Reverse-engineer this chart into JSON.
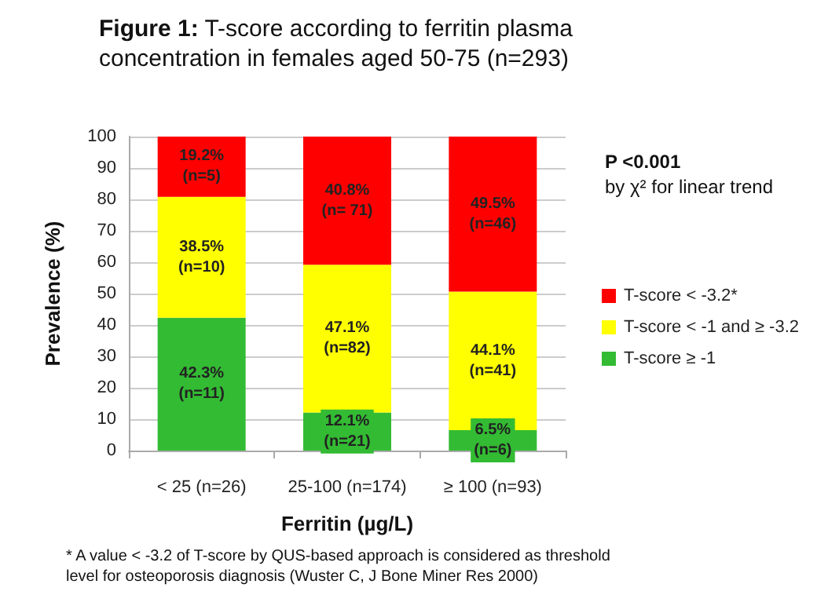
{
  "chart_data": {
    "type": "bar",
    "stacked": true,
    "title": "Figure 1: T-score according to ferritin plasma concentration in females aged 50-75 (n=293)",
    "xlabel": "Ferritin (µg/L)",
    "ylabel": "Prevalence (%)",
    "categories": [
      "< 25 (n=26)",
      "25-100 (n=174)",
      "≥ 100 (n=93)"
    ],
    "series": [
      {
        "name": "T-score ≥ -1",
        "color": "#33bb33",
        "values": [
          42.3,
          12.1,
          6.5
        ],
        "value_labels": [
          "42.3%\n(n=11)",
          "12.1%\n(n=21)",
          "6.5%\n(n=6)"
        ]
      },
      {
        "name": "T-score < -1 and ≥ -3.2",
        "color": "#ffff00",
        "values": [
          38.5,
          47.1,
          44.1
        ],
        "value_labels": [
          "38.5%\n(n=10)",
          "47.1%\n(n=82)",
          "44.1%\n(n=41)"
        ]
      },
      {
        "name": "T-score < -3.2*",
        "color": "#ff0000",
        "values": [
          19.2,
          40.8,
          49.5
        ],
        "value_labels": [
          "19.2%\n(n=5)",
          "40.8%\n(n= 71)",
          "49.5%\n(n=46)"
        ]
      }
    ],
    "ylim": [
      0,
      100
    ],
    "yticks": [
      0,
      10,
      20,
      30,
      40,
      50,
      60,
      70,
      80,
      90,
      100
    ],
    "grid": "y",
    "legend": "right",
    "annotations": [
      "P <0.001",
      "by χ² for linear trend",
      "* A value < -3.2 of T-score by QUS-based approach is considered as threshold level for osteoporosis diagnosis (Wuster C, J Bone Miner Res 2000)"
    ]
  }
}
